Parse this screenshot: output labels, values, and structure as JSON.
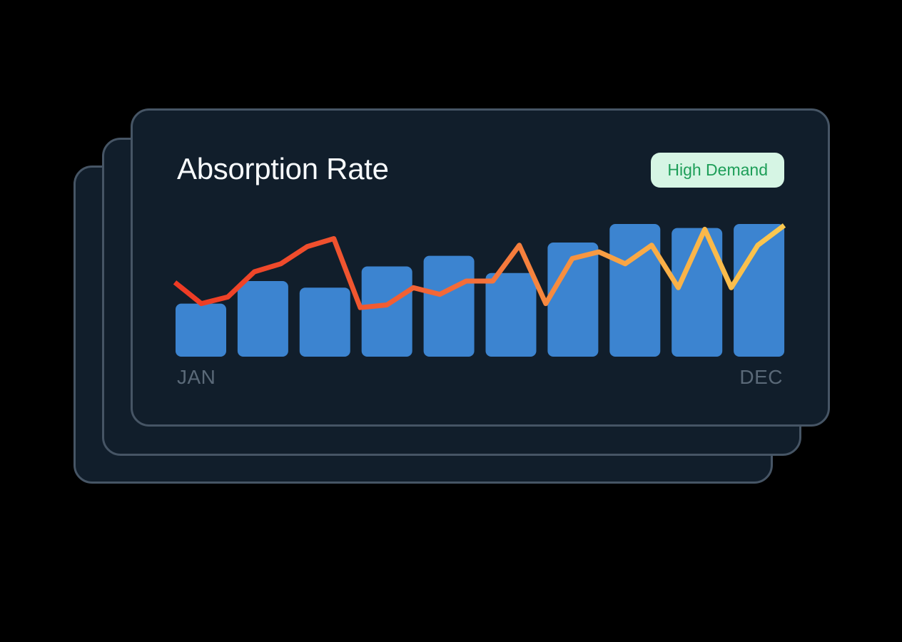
{
  "theme": {
    "page_bg": "#000000",
    "card_bg": "#111e2b",
    "card_border": "#465565",
    "title_color": "#f7fafc",
    "axis_label_color": "#5a6978",
    "badge_bg": "#d6f5e4",
    "badge_text": "#1d9e58"
  },
  "card": {
    "title": "Absorption Rate",
    "badge": {
      "label": "High Demand",
      "bg": "#d6f5e4",
      "text_color": "#1d9e58"
    },
    "x_axis": {
      "start_label": "JAN",
      "end_label": "DEC"
    }
  },
  "chart_data": {
    "type": "combo",
    "title": "Absorption Rate",
    "xlabel": "",
    "ylabel": "",
    "ylim": [
      0,
      100
    ],
    "grid": false,
    "legend": "none",
    "x_tick_labels_visible": [
      "JAN",
      "DEC"
    ],
    "bar_series": {
      "name": "monthly-absorption-bars",
      "color": "#3c84d0",
      "values": [
        40,
        57,
        52,
        68,
        76,
        63,
        86,
        100,
        97,
        100
      ]
    },
    "line_series": {
      "name": "absorption-trend-line",
      "stroke_width": 7,
      "gradient": [
        "#ee3a24",
        "#f0512e",
        "#f4703a",
        "#f9a845",
        "#fbc94f"
      ],
      "values": [
        56,
        40,
        45,
        64,
        70,
        83,
        89,
        37,
        39,
        52,
        47,
        57,
        57,
        84,
        40,
        74,
        79,
        70,
        84,
        52,
        96,
        52,
        84,
        99
      ]
    }
  }
}
